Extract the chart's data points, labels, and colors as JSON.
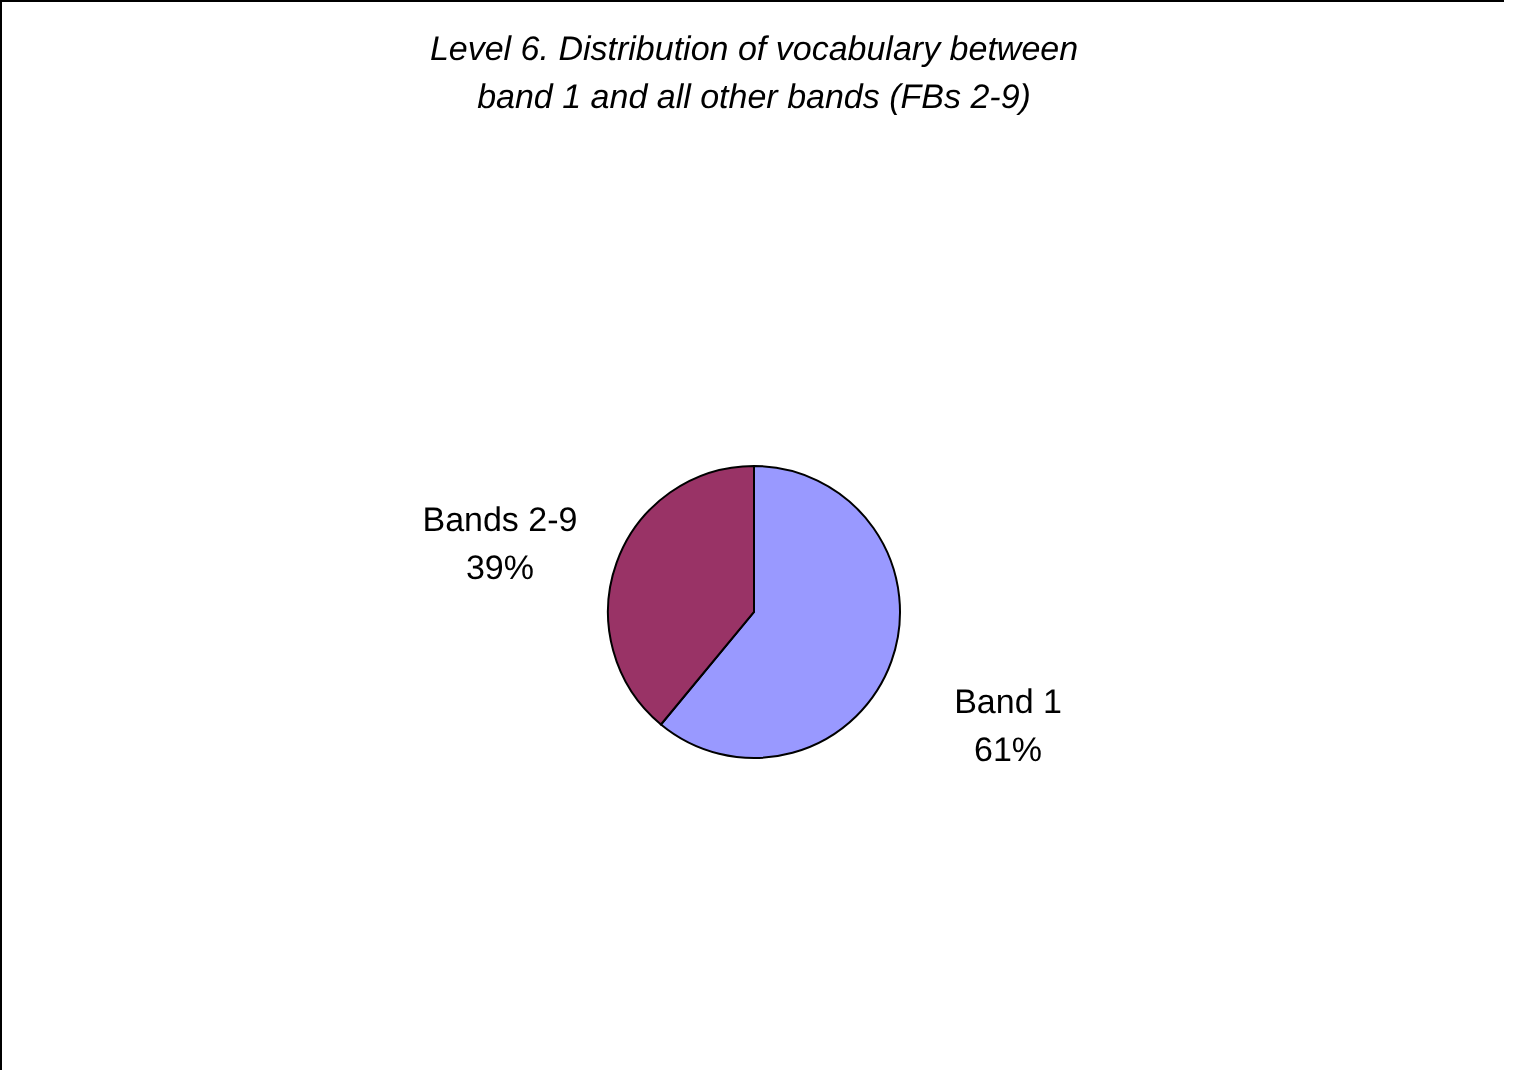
{
  "chart_data": {
    "type": "pie",
    "title": "Level 6. Distribution of vocabulary between band 1 and all  other bands (FBs 2-9)",
    "categories": [
      "Band 1",
      "Bands 2-9"
    ],
    "values": [
      61,
      39
    ],
    "colors": [
      "#9999ff",
      "#993366"
    ],
    "value_labels": [
      "61%",
      "39%"
    ],
    "legend": false
  }
}
